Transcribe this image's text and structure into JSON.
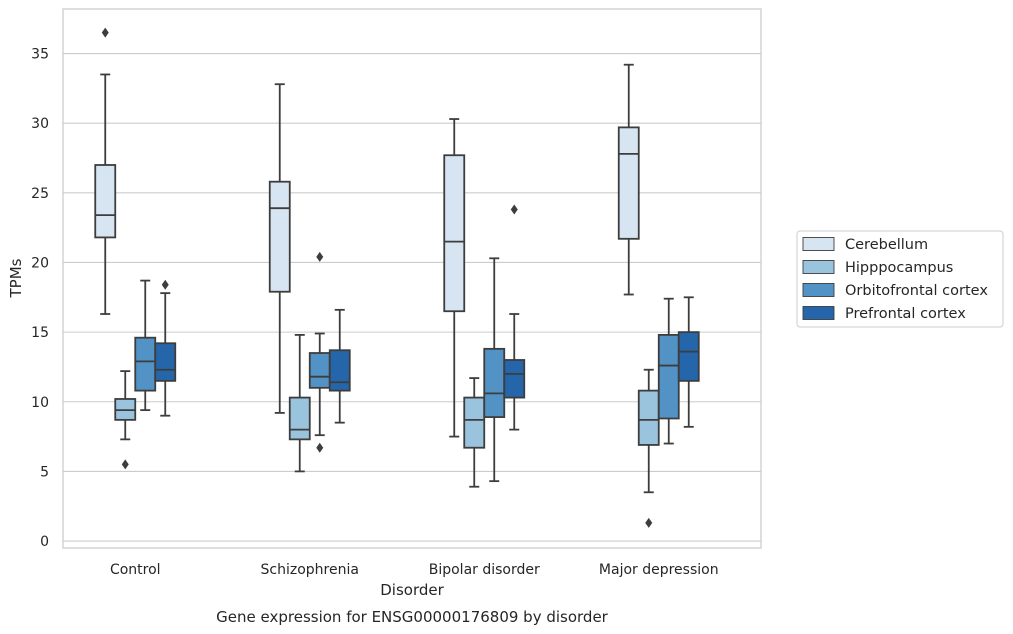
{
  "chart_data": {
    "type": "box",
    "title": "Gene expression for ENSG00000176809 by disorder",
    "xlabel": "Disorder",
    "ylabel": "TPMs",
    "categories": [
      "Control",
      "Schizophrenia",
      "Bipolar disorder",
      "Major depression"
    ],
    "y_ticks": [
      0,
      5,
      10,
      15,
      20,
      25,
      30,
      35
    ],
    "ylim": [
      -0.5,
      38.2
    ],
    "grid": "horizontal",
    "legend_position": "right",
    "series": [
      {
        "name": "Cerebellum",
        "color": "#d7e4f1",
        "boxes": [
          {
            "whisker_low": 16.3,
            "q1": 21.8,
            "median": 23.4,
            "q3": 27.0,
            "whisker_high": 33.5,
            "outliers": [
              36.5
            ]
          },
          {
            "whisker_low": 9.2,
            "q1": 17.9,
            "median": 23.9,
            "q3": 25.8,
            "whisker_high": 32.8,
            "outliers": []
          },
          {
            "whisker_low": 7.5,
            "q1": 16.5,
            "median": 21.5,
            "q3": 27.7,
            "whisker_high": 30.3,
            "outliers": []
          },
          {
            "whisker_low": 17.7,
            "q1": 21.7,
            "median": 27.8,
            "q3": 29.7,
            "whisker_high": 34.2,
            "outliers": []
          }
        ]
      },
      {
        "name": "Hipppocampus",
        "color": "#9ac3de",
        "boxes": [
          {
            "whisker_low": 7.3,
            "q1": 8.7,
            "median": 9.4,
            "q3": 10.2,
            "whisker_high": 12.2,
            "outliers": [
              5.5
            ]
          },
          {
            "whisker_low": 5.0,
            "q1": 7.3,
            "median": 8.0,
            "q3": 10.3,
            "whisker_high": 14.8,
            "outliers": []
          },
          {
            "whisker_low": 3.9,
            "q1": 6.7,
            "median": 8.7,
            "q3": 10.3,
            "whisker_high": 11.7,
            "outliers": []
          },
          {
            "whisker_low": 3.5,
            "q1": 6.9,
            "median": 8.7,
            "q3": 10.8,
            "whisker_high": 12.3,
            "outliers": [
              1.3
            ]
          }
        ]
      },
      {
        "name": "Orbitofrontal cortex",
        "color": "#5392c5",
        "boxes": [
          {
            "whisker_low": 9.4,
            "q1": 10.8,
            "median": 12.9,
            "q3": 14.6,
            "whisker_high": 18.7,
            "outliers": []
          },
          {
            "whisker_low": 7.6,
            "q1": 11.0,
            "median": 11.8,
            "q3": 13.5,
            "whisker_high": 14.9,
            "outliers": [
              6.7,
              20.4
            ]
          },
          {
            "whisker_low": 4.3,
            "q1": 8.9,
            "median": 10.6,
            "q3": 13.8,
            "whisker_high": 20.3,
            "outliers": []
          },
          {
            "whisker_low": 7.0,
            "q1": 8.8,
            "median": 12.6,
            "q3": 14.8,
            "whisker_high": 17.4,
            "outliers": []
          }
        ]
      },
      {
        "name": "Prefrontal cortex",
        "color": "#2565a9",
        "boxes": [
          {
            "whisker_low": 9.0,
            "q1": 11.5,
            "median": 12.3,
            "q3": 14.2,
            "whisker_high": 17.8,
            "outliers": [
              18.4
            ]
          },
          {
            "whisker_low": 8.5,
            "q1": 10.8,
            "median": 11.4,
            "q3": 13.7,
            "whisker_high": 16.6,
            "outliers": []
          },
          {
            "whisker_low": 8.0,
            "q1": 10.3,
            "median": 12.0,
            "q3": 13.0,
            "whisker_high": 16.3,
            "outliers": [
              23.8
            ]
          },
          {
            "whisker_low": 8.2,
            "q1": 11.5,
            "median": 13.6,
            "q3": 15.0,
            "whisker_high": 17.5,
            "outliers": []
          }
        ]
      }
    ]
  }
}
